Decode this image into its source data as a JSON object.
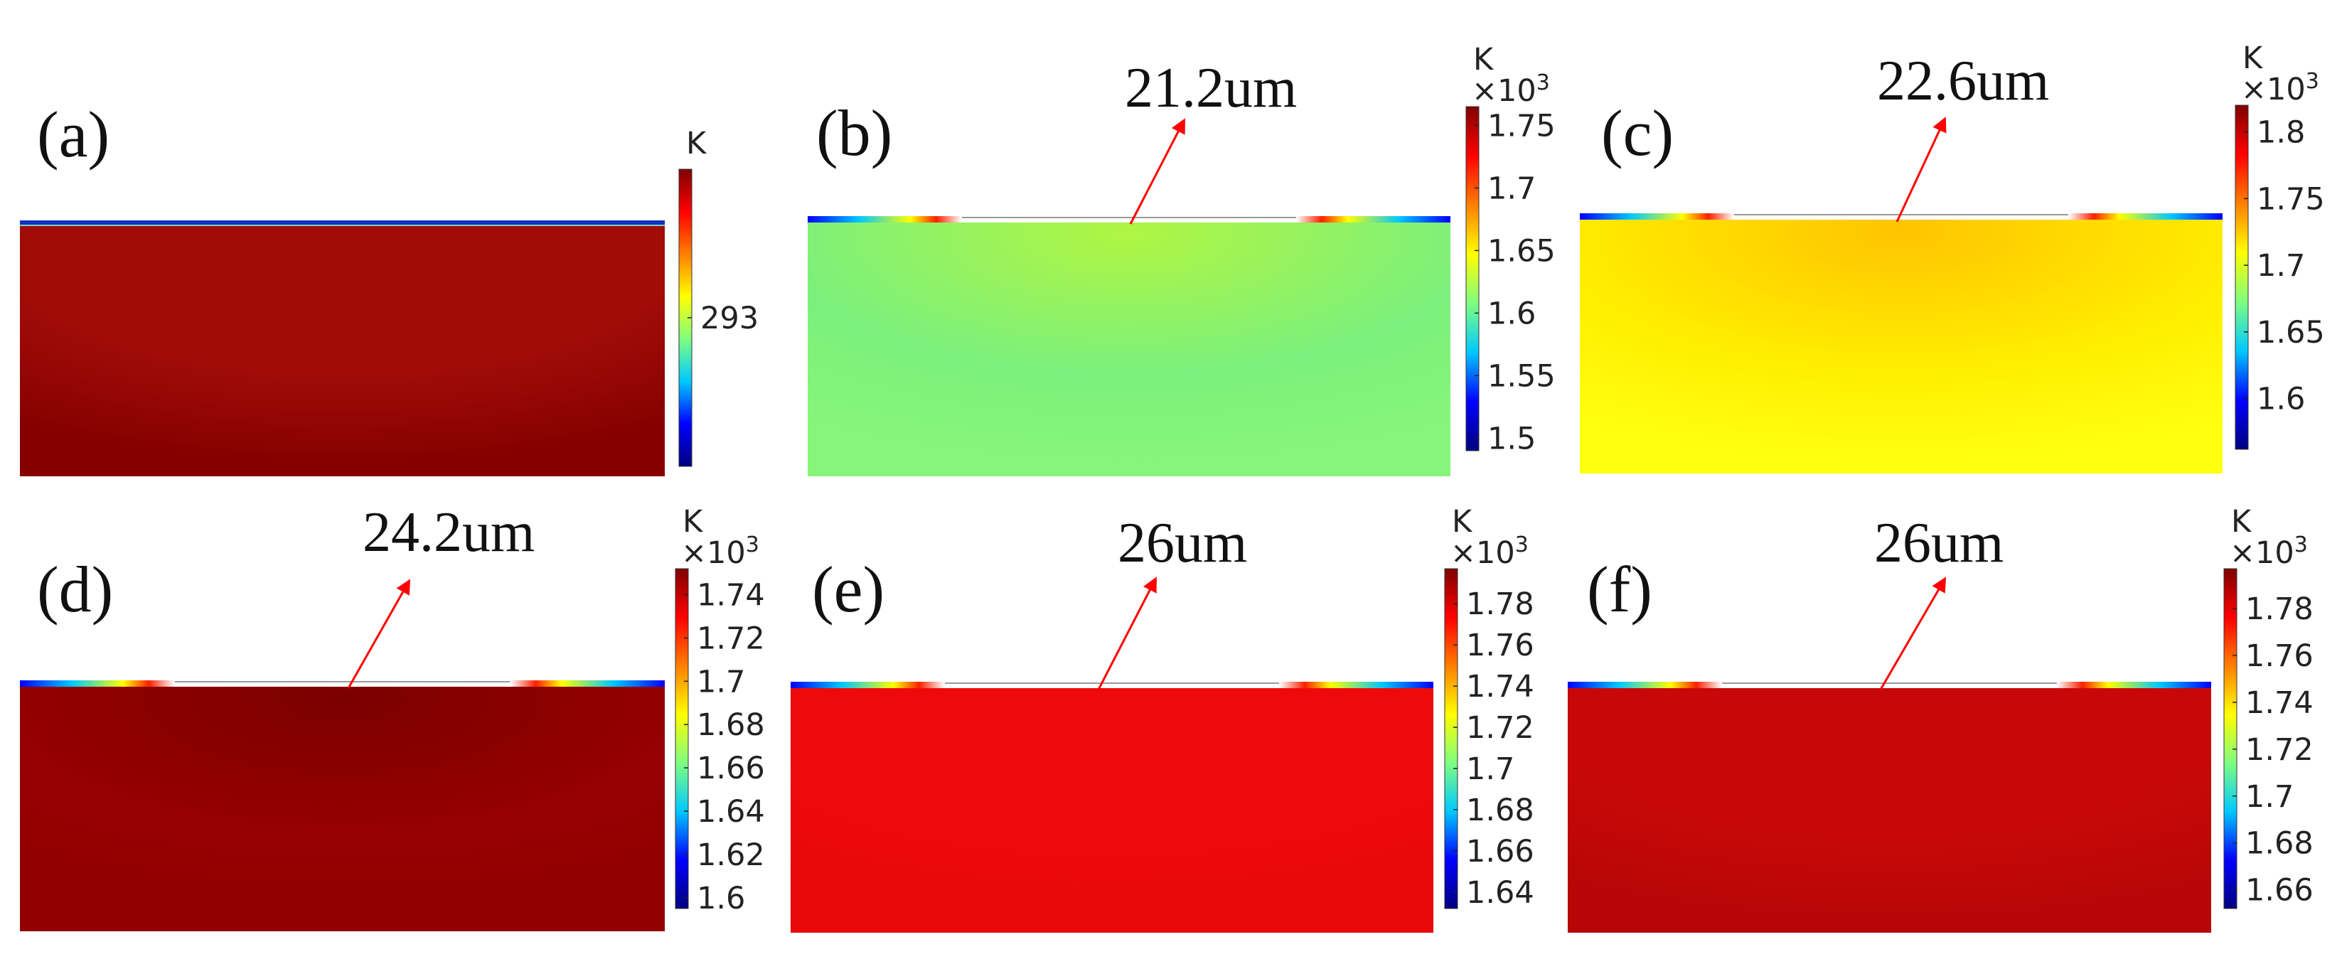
{
  "figure": {
    "colormap": [
      "#00007f",
      "#0000ff",
      "#00c8ff",
      "#7fff7f",
      "#ffff00",
      "#ff7f00",
      "#ff0000",
      "#7f0000"
    ],
    "arrow_color": "#ff0000",
    "panels": [
      {
        "label": "(a)",
        "annotation": "",
        "unit": "K",
        "multiplier": "",
        "multiplier_exp": "",
        "fill": "#a00c08",
        "fill_bottom": "#860000",
        "fill_center": "",
        "ticks": [
          {
            "value": 293,
            "text": "293"
          }
        ],
        "range": [
          292.5,
          293.5
        ],
        "hotspots": false
      },
      {
        "label": "(b)",
        "annotation": "21.2um",
        "unit": "K",
        "multiplier": "×10",
        "multiplier_exp": "3",
        "fill": "#7cf07c",
        "fill_bottom": "#86f57a",
        "fill_center": "#b0f542",
        "ticks": [
          {
            "value": 1.5,
            "text": "1.5"
          },
          {
            "value": 1.55,
            "text": "1.55"
          },
          {
            "value": 1.6,
            "text": "1.6"
          },
          {
            "value": 1.65,
            "text": "1.65"
          },
          {
            "value": 1.7,
            "text": "1.7"
          },
          {
            "value": 1.75,
            "text": "1.75"
          }
        ],
        "range": [
          1.49,
          1.765
        ],
        "hotspots": true
      },
      {
        "label": "(c)",
        "annotation": "22.6um",
        "unit": "K",
        "multiplier": "×10",
        "multiplier_exp": "3",
        "fill": "#ffee00",
        "fill_bottom": "#ffff10",
        "fill_center": "#ffc400",
        "ticks": [
          {
            "value": 1.6,
            "text": "1.6"
          },
          {
            "value": 1.65,
            "text": "1.65"
          },
          {
            "value": 1.7,
            "text": "1.7"
          },
          {
            "value": 1.75,
            "text": "1.75"
          },
          {
            "value": 1.8,
            "text": "1.8"
          }
        ],
        "range": [
          1.562,
          1.82
        ],
        "hotspots": true
      },
      {
        "label": "(d)",
        "annotation": "24.2um",
        "unit": "K",
        "multiplier": "×10",
        "multiplier_exp": "3",
        "fill": "#960000",
        "fill_bottom": "#920000",
        "fill_center": "#7c0000",
        "ticks": [
          {
            "value": 1.6,
            "text": "1.6"
          },
          {
            "value": 1.62,
            "text": "1.62"
          },
          {
            "value": 1.64,
            "text": "1.64"
          },
          {
            "value": 1.66,
            "text": "1.66"
          },
          {
            "value": 1.68,
            "text": "1.68"
          },
          {
            "value": 1.7,
            "text": "1.7"
          },
          {
            "value": 1.72,
            "text": "1.72"
          },
          {
            "value": 1.74,
            "text": "1.74"
          }
        ],
        "range": [
          1.595,
          1.752
        ],
        "hotspots": true
      },
      {
        "label": "(e)",
        "annotation": "26um",
        "unit": "K",
        "multiplier": "×10",
        "multiplier_exp": "3",
        "fill": "#ee0a0a",
        "fill_bottom": "#e80808",
        "fill_center": "",
        "ticks": [
          {
            "value": 1.64,
            "text": "1.64"
          },
          {
            "value": 1.66,
            "text": "1.66"
          },
          {
            "value": 1.68,
            "text": "1.68"
          },
          {
            "value": 1.7,
            "text": "1.7"
          },
          {
            "value": 1.72,
            "text": "1.72"
          },
          {
            "value": 1.74,
            "text": "1.74"
          },
          {
            "value": 1.76,
            "text": "1.76"
          },
          {
            "value": 1.78,
            "text": "1.78"
          }
        ],
        "range": [
          1.632,
          1.797
        ],
        "hotspots": true
      },
      {
        "label": "(f)",
        "annotation": "26um",
        "unit": "K",
        "multiplier": "×10",
        "multiplier_exp": "3",
        "fill": "#c80808",
        "fill_bottom": "#b80606",
        "fill_center": "",
        "ticks": [
          {
            "value": 1.66,
            "text": "1.66"
          },
          {
            "value": 1.68,
            "text": "1.68"
          },
          {
            "value": 1.7,
            "text": "1.7"
          },
          {
            "value": 1.72,
            "text": "1.72"
          },
          {
            "value": 1.74,
            "text": "1.74"
          },
          {
            "value": 1.76,
            "text": "1.76"
          },
          {
            "value": 1.78,
            "text": "1.78"
          }
        ],
        "range": [
          1.652,
          1.797
        ],
        "hotspots": true
      }
    ]
  }
}
